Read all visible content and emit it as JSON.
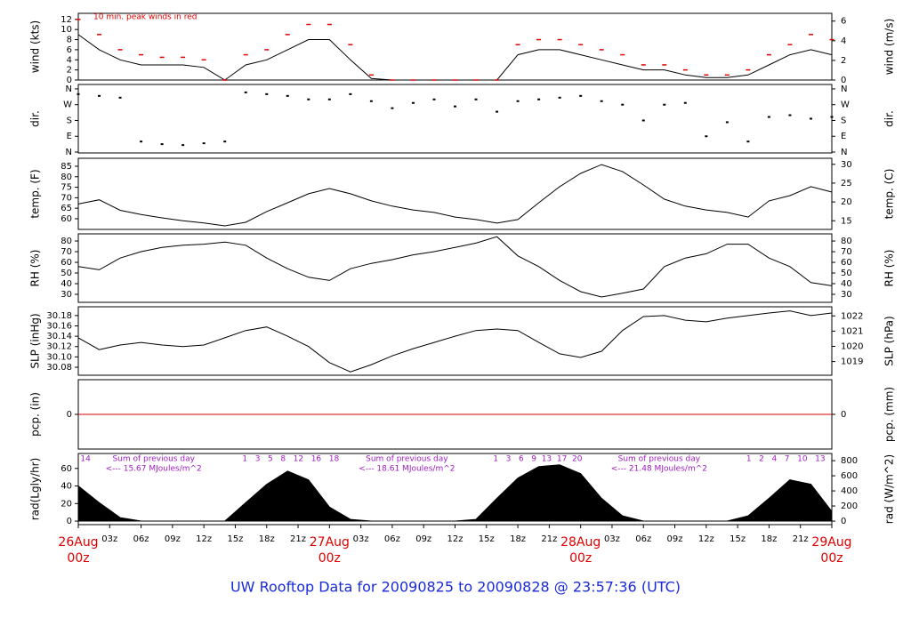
{
  "title": "UW Rooftop Data for 20090825  to  20090828 @ 23:57:36  (UTC)",
  "chart_data": [
    {
      "type": "line",
      "ylabel": "wind (kts)",
      "y2label": "wind (m/s)",
      "annotation": "10 min. peak winds in red",
      "x": [
        0,
        2,
        4,
        6,
        8,
        10,
        12,
        14,
        16,
        18,
        20,
        22,
        24,
        26,
        28,
        30,
        32,
        34,
        36,
        38,
        40,
        42,
        44,
        46,
        48,
        50,
        52,
        54,
        56,
        58,
        60,
        62,
        64,
        66,
        68,
        70,
        72
      ],
      "xlim": [
        0,
        72
      ],
      "ylim": [
        0,
        13.2
      ],
      "yticks": [
        0,
        2,
        4,
        6,
        8,
        10,
        12
      ],
      "y2lim": [
        0,
        6.79
      ],
      "y2ticks": [
        0,
        2,
        4,
        6
      ],
      "series": [
        {
          "color": "#000000",
          "marker": "line",
          "values": [
            9,
            6,
            4,
            3,
            3,
            3,
            2.5,
            0,
            3,
            4,
            6,
            8,
            8,
            4,
            0.3,
            0,
            0,
            0,
            0,
            0,
            0,
            5,
            6,
            6,
            5,
            4,
            3,
            2,
            2,
            1,
            0.5,
            0.5,
            1,
            3,
            5,
            6,
            5
          ]
        },
        {
          "color": "#e00000",
          "marker": "dash",
          "values": [
            12,
            9,
            6,
            5,
            4.5,
            4.5,
            4,
            0,
            5,
            6,
            9,
            11,
            11,
            7,
            1,
            0,
            0,
            0,
            0,
            0,
            0,
            7,
            8,
            8,
            7,
            6,
            5,
            3,
            3,
            2,
            1,
            1,
            2,
            5,
            7,
            9,
            8
          ]
        }
      ]
    },
    {
      "type": "scatter",
      "ylabel": "dir.",
      "y2label": "dir.",
      "x": [
        0,
        2,
        4,
        6,
        8,
        10,
        12,
        14,
        16,
        18,
        20,
        22,
        24,
        26,
        28,
        30,
        32,
        34,
        36,
        38,
        40,
        42,
        44,
        46,
        48,
        50,
        52,
        54,
        56,
        58,
        60,
        62,
        64,
        66,
        68,
        70,
        72
      ],
      "xlim": [
        0,
        72
      ],
      "ylim": [
        -5,
        385
      ],
      "yticks": [
        {
          "value": 0,
          "label": "N"
        },
        {
          "value": 90,
          "label": "E"
        },
        {
          "value": 180,
          "label": "S"
        },
        {
          "value": 270,
          "label": "W"
        },
        {
          "value": 360,
          "label": "N"
        }
      ],
      "y2lim": [
        -5,
        385
      ],
      "y2ticks": [
        {
          "value": 0,
          "label": "N"
        },
        {
          "value": 90,
          "label": "E"
        },
        {
          "value": 180,
          "label": "S"
        },
        {
          "value": 270,
          "label": "W"
        },
        {
          "value": 360,
          "label": "N"
        }
      ],
      "series": [
        {
          "color": "#000000",
          "values": [
            330,
            320,
            310,
            60,
            45,
            40,
            50,
            60,
            340,
            330,
            320,
            300,
            300,
            330,
            290,
            250,
            280,
            300,
            260,
            300,
            230,
            290,
            300,
            310,
            320,
            290,
            270,
            180,
            270,
            280,
            90,
            170,
            60,
            200,
            210,
            190,
            200
          ]
        }
      ]
    },
    {
      "type": "line",
      "ylabel": "temp. (F)",
      "y2label": "temp. (C)",
      "x": [
        0,
        2,
        4,
        6,
        8,
        10,
        12,
        14,
        16,
        18,
        20,
        22,
        24,
        26,
        28,
        30,
        32,
        34,
        36,
        38,
        40,
        42,
        44,
        46,
        48,
        50,
        52,
        54,
        56,
        58,
        60,
        62,
        64,
        66,
        68,
        70,
        72
      ],
      "xlim": [
        0,
        72
      ],
      "ylim": [
        54.9,
        88.8
      ],
      "yticks": [
        60,
        65,
        70,
        75,
        80,
        85
      ],
      "y2lim": [
        12.7,
        31.6
      ],
      "y2ticks": [
        15,
        20,
        25,
        30
      ],
      "series": [
        {
          "color": "#000000",
          "marker": "line",
          "values": [
            67,
            69,
            64,
            62,
            60.4,
            59,
            58,
            56.6,
            58.3,
            63.4,
            67.6,
            71.9,
            74.4,
            71.9,
            68.5,
            66,
            64.2,
            63,
            60.8,
            59.6,
            57.9,
            59.6,
            67.6,
            75.3,
            81.6,
            85.8,
            82.5,
            76.1,
            69.3,
            66,
            64.2,
            63,
            60.8,
            68.5,
            71,
            75.3,
            72.7
          ]
        }
      ]
    },
    {
      "type": "line",
      "ylabel": "RH (%)",
      "y2label": "RH (%)",
      "x": [
        0,
        2,
        4,
        6,
        8,
        10,
        12,
        14,
        16,
        18,
        20,
        22,
        24,
        26,
        28,
        30,
        32,
        34,
        36,
        38,
        40,
        42,
        44,
        46,
        48,
        50,
        52,
        54,
        56,
        58,
        60,
        62,
        64,
        66,
        68,
        70,
        72
      ],
      "xlim": [
        0,
        72
      ],
      "ylim": [
        22.5,
        86.7
      ],
      "yticks": [
        30,
        40,
        50,
        60,
        70,
        80
      ],
      "y2lim": [
        22.5,
        86.7
      ],
      "y2ticks": [
        30,
        40,
        50,
        60,
        70,
        80
      ],
      "series": [
        {
          "color": "#000000",
          "marker": "line",
          "values": [
            56,
            53,
            64,
            70,
            74,
            76,
            77,
            79,
            76,
            64,
            54,
            46,
            43,
            54,
            59,
            62.5,
            67,
            70,
            74,
            78,
            84,
            66,
            56,
            43,
            32.5,
            27.5,
            31,
            35,
            56,
            64,
            68,
            77,
            77,
            64,
            56,
            41,
            38
          ]
        }
      ]
    },
    {
      "type": "line",
      "ylabel": "SLP (inHg)",
      "y2label": "SLP (hPa)",
      "x": [
        0,
        2,
        4,
        6,
        8,
        10,
        12,
        14,
        16,
        18,
        20,
        22,
        24,
        26,
        28,
        30,
        32,
        34,
        36,
        38,
        40,
        42,
        44,
        46,
        48,
        50,
        52,
        54,
        56,
        58,
        60,
        62,
        64,
        66,
        68,
        70,
        72
      ],
      "xlim": [
        0,
        72
      ],
      "ylim": [
        30.0645,
        30.197
      ],
      "yticks": [
        30.08,
        {
          "value": 30.1,
          "label": "30.10"
        },
        30.12,
        30.14,
        30.16,
        30.18
      ],
      "y2lim": [
        1018.1,
        1022.6
      ],
      "y2ticks": [
        1019,
        1020,
        1021,
        1022
      ],
      "series": [
        {
          "color": "#000000",
          "marker": "line",
          "values": [
            30.137,
            30.114,
            30.123,
            30.128,
            30.123,
            30.12,
            30.123,
            30.137,
            30.151,
            30.158,
            30.14,
            30.12,
            30.089,
            30.071,
            30.085,
            30.102,
            30.116,
            30.128,
            30.14,
            30.151,
            30.154,
            30.151,
            30.128,
            30.106,
            30.099,
            30.111,
            30.151,
            30.178,
            30.18,
            30.171,
            30.168,
            30.175,
            30.18,
            30.185,
            30.189,
            30.18,
            30.185
          ]
        }
      ]
    },
    {
      "type": "line",
      "ylabel": "pcp. (in)",
      "y2label": "pcp. (mm)",
      "x": [
        0,
        2,
        4,
        6,
        8,
        10,
        12,
        14,
        16,
        18,
        20,
        22,
        24,
        26,
        28,
        30,
        32,
        34,
        36,
        38,
        40,
        42,
        44,
        46,
        48,
        50,
        52,
        54,
        56,
        58,
        60,
        62,
        64,
        66,
        68,
        70,
        72
      ],
      "xlim": [
        0,
        72
      ],
      "ylim": [
        -1,
        1
      ],
      "yticks": [
        0
      ],
      "y2lim": [
        -1,
        1
      ],
      "y2ticks": [
        0
      ],
      "series": [
        {
          "color": "#e00000",
          "marker": "line",
          "values": [
            0,
            0,
            0,
            0,
            0,
            0,
            0,
            0,
            0,
            0,
            0,
            0,
            0,
            0,
            0,
            0,
            0,
            0,
            0,
            0,
            0,
            0,
            0,
            0,
            0,
            0,
            0,
            0,
            0,
            0,
            0,
            0,
            0,
            0,
            0,
            0,
            0
          ]
        }
      ]
    },
    {
      "type": "area",
      "ylabel": "rad(Lgly/hr)",
      "y2label": "rad (W/m^2)",
      "x": [
        0,
        2,
        4,
        6,
        8,
        10,
        12,
        14,
        16,
        18,
        20,
        22,
        24,
        26,
        28,
        30,
        32,
        34,
        36,
        38,
        40,
        42,
        44,
        46,
        48,
        50,
        52,
        54,
        56,
        58,
        60,
        62,
        64,
        66,
        68,
        70,
        72
      ],
      "xlim": [
        0,
        72
      ],
      "ylim": [
        -4,
        77
      ],
      "yticks": [
        0,
        20,
        40,
        60
      ],
      "y2lim": [
        -46.5,
        895
      ],
      "y2ticks": [
        0,
        200,
        400,
        600,
        800
      ],
      "xticks": [
        {
          "value": 0,
          "label": "00z",
          "date": "26Aug"
        },
        {
          "value": 3,
          "label": "03z"
        },
        {
          "value": 6,
          "label": "06z"
        },
        {
          "value": 9,
          "label": "09z"
        },
        {
          "value": 12,
          "label": "12z"
        },
        {
          "value": 15,
          "label": "15z"
        },
        {
          "value": 18,
          "label": "18z"
        },
        {
          "value": 21,
          "label": "21z"
        },
        {
          "value": 24,
          "label": "00z",
          "date": "27Aug"
        },
        {
          "value": 27,
          "label": "03z"
        },
        {
          "value": 30,
          "label": "06z"
        },
        {
          "value": 33,
          "label": "09z"
        },
        {
          "value": 36,
          "label": "12z"
        },
        {
          "value": 39,
          "label": "15z"
        },
        {
          "value": 42,
          "label": "18z"
        },
        {
          "value": 45,
          "label": "21z"
        },
        {
          "value": 48,
          "label": "00z",
          "date": "28Aug"
        },
        {
          "value": 51,
          "label": "03z"
        },
        {
          "value": 54,
          "label": "06z"
        },
        {
          "value": 57,
          "label": "09z"
        },
        {
          "value": 60,
          "label": "12z"
        },
        {
          "value": 63,
          "label": "15z"
        },
        {
          "value": 66,
          "label": "18z"
        },
        {
          "value": 69,
          "label": "21z"
        },
        {
          "value": 72,
          "label": "00z",
          "date": "29Aug"
        }
      ],
      "hour_labels": [
        {
          "x": 0.2,
          "text": "14"
        },
        {
          "x": 20.3,
          "text": "1   3   5   8   12   16   18"
        },
        {
          "x": 43.9,
          "text": "1   3   6   9  13  17  20"
        },
        {
          "x": 67.6,
          "text": "1   2   4   7   10   13"
        }
      ],
      "daily_sums": [
        {
          "x": 7.2,
          "heading": "Sum of previous day",
          "text": "<--- 15.67 MJoules/m^2"
        },
        {
          "x": 31.4,
          "heading": "Sum of previous day",
          "text": "<--- 18.61 MJoules/m^2"
        },
        {
          "x": 55.5,
          "heading": "Sum of previous day",
          "text": "<--- 21.48 MJoules/m^2"
        }
      ],
      "series": [
        {
          "color": "#000000",
          "values": [
            40,
            21,
            4,
            0,
            0,
            0,
            0,
            0,
            21,
            42,
            57,
            47,
            16,
            2,
            0,
            0,
            0,
            0,
            0,
            2,
            26,
            49,
            62,
            64,
            54,
            26,
            6,
            0,
            0,
            0,
            0,
            0,
            6,
            26,
            47,
            42,
            11
          ]
        }
      ]
    }
  ]
}
